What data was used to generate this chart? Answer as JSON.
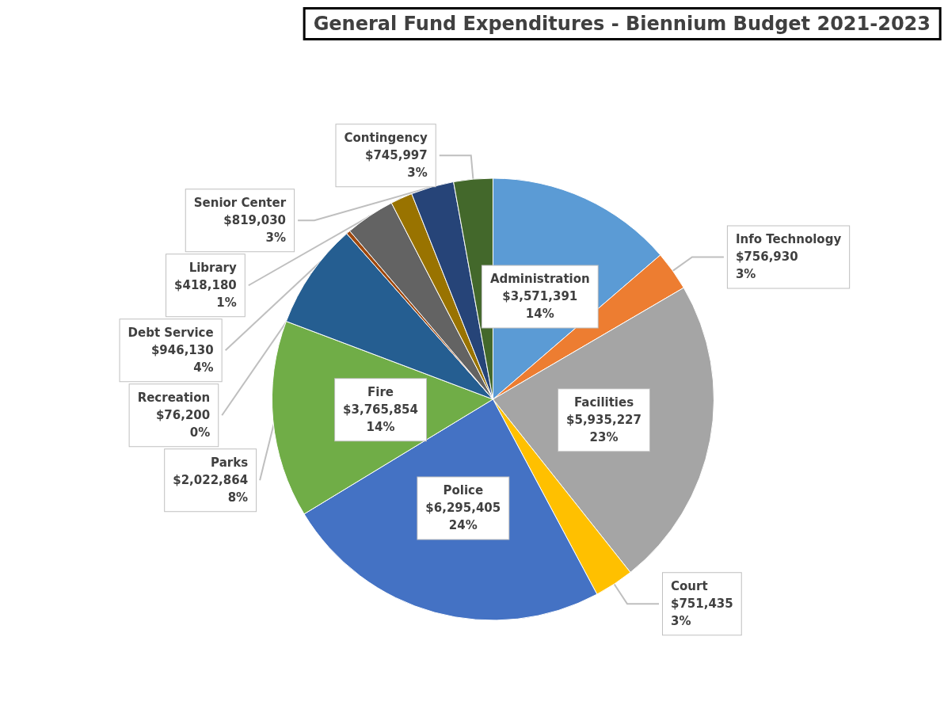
{
  "chart_data": {
    "type": "pie",
    "title": "General Fund Expenditures - Biennium Budget 2021-2023",
    "categories": [
      "Administration",
      "Info Technology",
      "Facilities",
      "Court",
      "Police",
      "Fire",
      "Parks",
      "Recreation",
      "Debt Service",
      "Library",
      "Senior Center",
      "Contingency"
    ],
    "values": [
      3571391,
      756930,
      5935227,
      751435,
      6295405,
      3765854,
      2022864,
      76200,
      946130,
      418180,
      819030,
      745997
    ],
    "value_labels": [
      "$3,571,391\n14%",
      "$756,930\n3%",
      "$5,935,227\n23%",
      "$751,435\n3%",
      "$6,295,405\n24%",
      "$3,765,854\n14%",
      "$2,022,864\n8%",
      "$76,200\n0%",
      "$946,130\n4%",
      "$418,180\n1%",
      "$819,030\n3%",
      "$745,997\n3%"
    ],
    "colors": [
      "#5b9bd5",
      "#ed7d31",
      "#a5a5a5",
      "#ffc000",
      "#4472c4",
      "#70ad47",
      "#255e91",
      "#9e480e",
      "#636363",
      "#997300",
      "#264478",
      "#43682b"
    ],
    "legend": false
  }
}
